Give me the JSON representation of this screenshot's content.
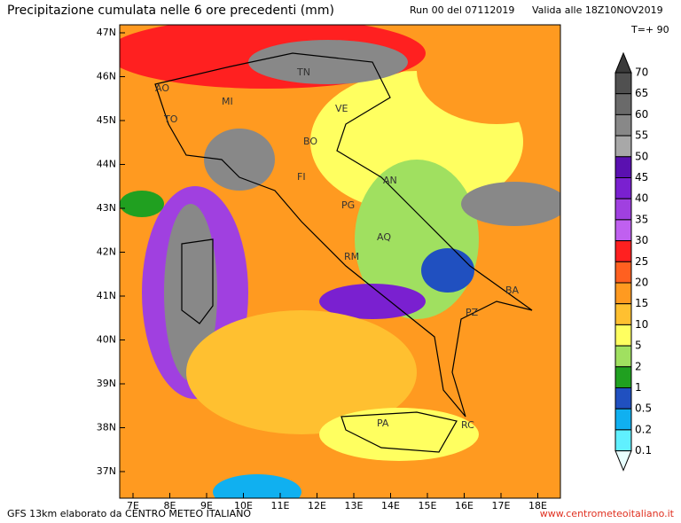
{
  "header": {
    "title": "Precipitazione cumulata nelle 6 ore precedenti (mm)",
    "run": "Run 00 del 07112019",
    "valid": "Valida alle 18Z10NOV2019",
    "lead": "T=+ 90"
  },
  "map": {
    "lat_labels": [
      "47N",
      "46N",
      "45N",
      "44N",
      "43N",
      "42N",
      "41N",
      "40N",
      "39N",
      "38N",
      "37N"
    ],
    "lon_labels": [
      "7E",
      "8E",
      "9E",
      "10E",
      "11E",
      "12E",
      "13E",
      "14E",
      "15E",
      "16E",
      "17E",
      "18E"
    ],
    "cities": [
      "AO",
      "TO",
      "MI",
      "TN",
      "VE",
      "BO",
      "FI",
      "AN",
      "PG",
      "AQ",
      "RM",
      "BA",
      "PZ",
      "PA",
      "RC"
    ]
  },
  "colorbar": {
    "labels": [
      70,
      65,
      60,
      55,
      50,
      45,
      40,
      35,
      30,
      25,
      20,
      15,
      10,
      5,
      2,
      1,
      0.5,
      0.2,
      0.1
    ],
    "colors": [
      "#3a3a3a",
      "#505050",
      "#6a6a6a",
      "#888888",
      "#a8a8a8",
      "#5a10b0",
      "#7a20d0",
      "#a040e0",
      "#c060f0",
      "#ff2020",
      "#ff6020",
      "#ff9a20",
      "#ffc030",
      "#ffff60",
      "#a0e060",
      "#20a020",
      "#2050c0",
      "#10b0f0",
      "#60f0ff",
      "#e8ffff"
    ]
  },
  "footer": {
    "source": "GFS 13km elaborato da CENTRO METEO ITALIANO",
    "site": "www.centrometeoitaliano.it"
  }
}
